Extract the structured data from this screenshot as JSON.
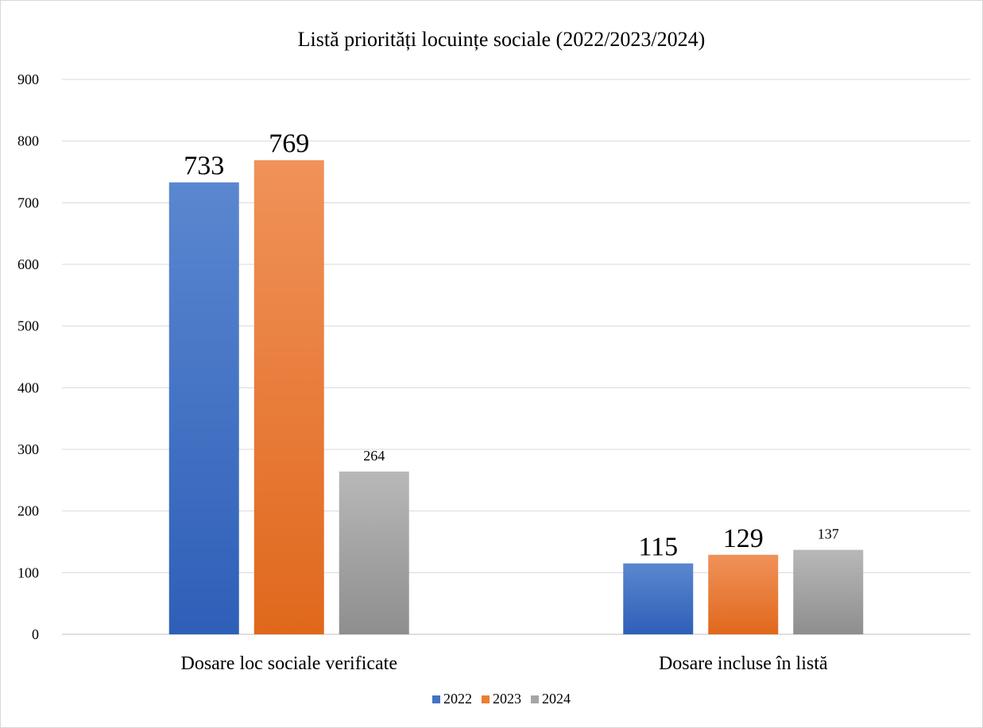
{
  "chart_data": {
    "type": "bar",
    "title": "Listă priorități locuințe sociale (2022/2023/2024)",
    "xlabel": "",
    "ylabel": "",
    "categories": [
      "Dosare loc sociale verificate",
      "Dosare incluse în listă"
    ],
    "series": [
      {
        "name": "2022",
        "values": [
          733,
          115
        ],
        "color": "#4472c4",
        "color_top": "#5b87d0",
        "color_bottom": "#2e5fb8"
      },
      {
        "name": "2023",
        "values": [
          769,
          129
        ],
        "color": "#ed7d31",
        "color_top": "#f0925a",
        "color_bottom": "#e0681c"
      },
      {
        "name": "2024",
        "values": [
          264,
          137
        ],
        "color": "#a5a5a5",
        "color_top": "#b8b8b8",
        "color_bottom": "#8e8e8e"
      }
    ],
    "data_labels": [
      [
        "733",
        "115"
      ],
      [
        "769",
        "129"
      ],
      [
        "264",
        "137"
      ]
    ],
    "data_label_large": [
      [
        true,
        true
      ],
      [
        true,
        true
      ],
      [
        false,
        false
      ]
    ],
    "yticks": [
      "0",
      "100",
      "200",
      "300",
      "400",
      "500",
      "600",
      "700",
      "800",
      "900"
    ],
    "ylim": [
      0,
      900
    ],
    "grid": true,
    "legend_position": "bottom"
  }
}
